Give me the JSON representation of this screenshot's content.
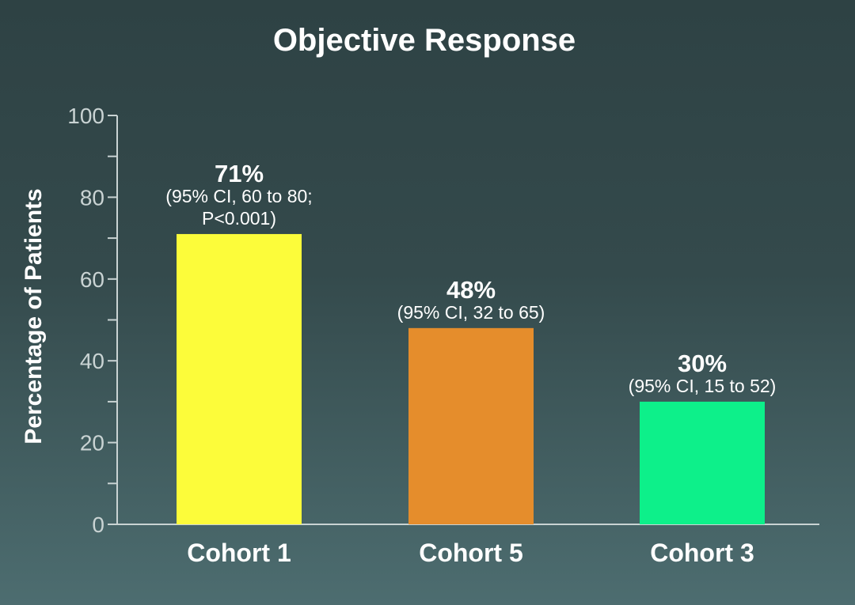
{
  "chart_data": {
    "type": "bar",
    "title": "Objective Response",
    "ylabel": "Percentage of Patients",
    "xlabel": "",
    "ylim": [
      0,
      100
    ],
    "yticks": [
      "0",
      "20",
      "40",
      "60",
      "80",
      "100"
    ],
    "ytick_values": [
      0,
      20,
      40,
      60,
      80,
      100
    ],
    "minor_tick_step": 10,
    "grid": false,
    "categories": [
      "Cohort 1",
      "Cohort 5",
      "Cohort 3"
    ],
    "values": [
      71,
      48,
      30
    ],
    "colors": [
      "#fcfc3a",
      "#e58d2c",
      "#0df08a"
    ],
    "value_labels": [
      "71%",
      "48%",
      "30%"
    ],
    "annotations": [
      [
        "(95% CI, 60 to 80;",
        "P<0.001)"
      ],
      [
        "(95% CI, 32 to 65)"
      ],
      [
        "(95% CI, 15 to 52)"
      ]
    ]
  }
}
